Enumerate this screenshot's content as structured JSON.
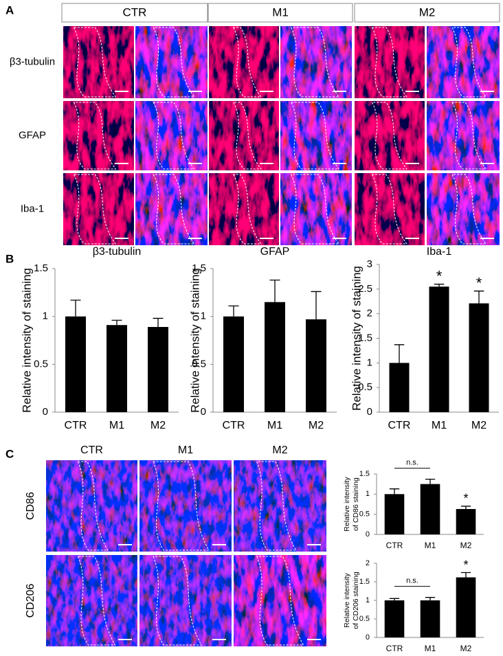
{
  "panel_labels": [
    "A",
    "B",
    "C"
  ],
  "panel_a": {
    "columns": [
      "CTR",
      "M1",
      "M2"
    ],
    "rows": [
      "β3-tubulin",
      "GFAP",
      "Iba-1"
    ]
  },
  "panel_c": {
    "columns": [
      "CTR",
      "M1",
      "M2"
    ],
    "rows": [
      "CD86",
      "CD206"
    ]
  },
  "chart_data": [
    {
      "type": "bar",
      "title": "β3-tubulin",
      "y_label": "Relative intensity of staining",
      "categories": [
        "CTR",
        "M1",
        "M2"
      ],
      "values": [
        1,
        0.91,
        0.89
      ],
      "errors": [
        0.17,
        0.05,
        0.09
      ],
      "color": "#000000",
      "ylim": [
        0,
        1.5
      ],
      "yticks": [
        0,
        0.5,
        1,
        1.5
      ]
    },
    {
      "type": "bar",
      "title": "GFAP",
      "y_label": "Relative intensity of staining",
      "categories": [
        "CTR",
        "M1",
        "M2"
      ],
      "values": [
        1,
        1.15,
        0.97
      ],
      "errors": [
        0.11,
        0.23,
        0.29
      ],
      "color": "#000000",
      "ylim": [
        0,
        1.5
      ],
      "yticks": [
        0,
        0.5,
        1,
        1.5
      ]
    },
    {
      "type": "bar",
      "title": "Iba-1",
      "y_label": "Relative intensity of staining",
      "categories": [
        "CTR",
        "M1",
        "M2"
      ],
      "values": [
        1,
        2.55,
        2.21
      ],
      "errors": [
        0.37,
        0.05,
        0.25
      ],
      "significance": [
        null,
        "*",
        "*"
      ],
      "color": "#000000",
      "ylim": [
        0,
        3
      ],
      "yticks": [
        0,
        0.5,
        1,
        1.5,
        2,
        2.5,
        3
      ]
    },
    {
      "type": "bar",
      "y_label": [
        "Relative intensity",
        "of CD86 staining"
      ],
      "categories": [
        "CTR",
        "M1",
        "M2"
      ],
      "values": [
        1,
        1.25,
        0.63
      ],
      "errors": [
        0.13,
        0.12,
        0.07
      ],
      "significance": [
        null,
        null,
        "*"
      ],
      "comparison": "n.s.",
      "color": "#000000",
      "ylim": [
        0,
        1.5
      ],
      "yticks": [
        0,
        0.5,
        1,
        1.5
      ]
    },
    {
      "type": "bar",
      "y_label": [
        "Relative intensity",
        "of CD206 staining"
      ],
      "categories": [
        "CTR",
        "M1",
        "M2"
      ],
      "values": [
        1,
        1,
        1.62
      ],
      "errors": [
        0.05,
        0.08,
        0.13
      ],
      "significance": [
        null,
        null,
        "*"
      ],
      "comparison": "n.s.",
      "color": "#000000",
      "ylim": [
        0,
        2
      ],
      "yticks": [
        0,
        0.5,
        1,
        1.5,
        2
      ]
    }
  ]
}
